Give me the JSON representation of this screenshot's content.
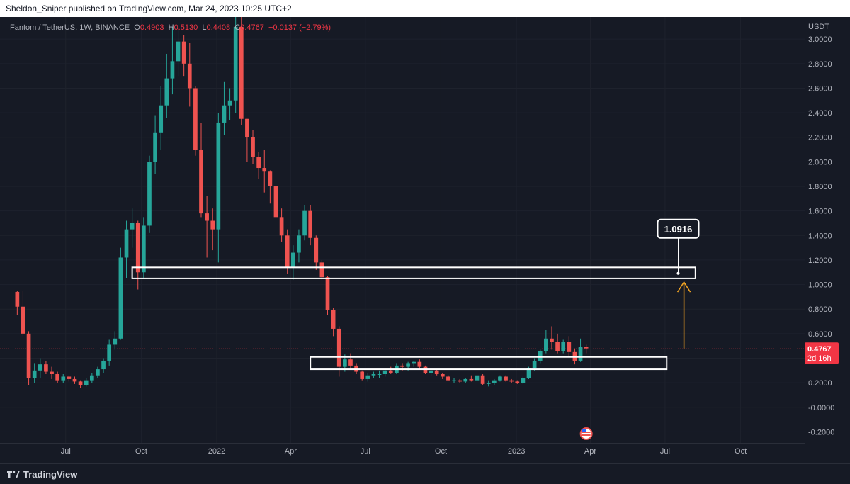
{
  "header": {
    "published_text": "Sheldon_Sniper published on TradingView.com, Mar 24, 2023 10:25 UTC+2"
  },
  "footer": {
    "brand": "TradingView",
    "logo_icon": "tradingview-logo-icon"
  },
  "colors": {
    "background": "#161a25",
    "grid": "#1e222d",
    "up": "#26a69a",
    "down": "#ef5350",
    "text": "#b2b5be",
    "zone_border": "#ffffff",
    "arrow": "#f5a623",
    "last_price_bg": "#f23645"
  },
  "legend": {
    "symbol": "Fantom / TetherUS, 1W, BINANCE",
    "o_label": "O",
    "o_value": "0.4903",
    "h_label": "H",
    "h_value": "0.5130",
    "l_label": "L",
    "l_value": "0.4408",
    "c_label": "C",
    "c_value": "0.4767",
    "change": "−0.0137 (−2.79%)"
  },
  "chart_data": {
    "type": "candlestick",
    "symbol": "Fantom / TetherUS",
    "interval": "1W",
    "exchange": "BINANCE",
    "currency_label": "USDT",
    "y_range": [
      -0.29,
      3.18
    ],
    "y_ticks": [
      "3.0000",
      "2.8000",
      "2.6000",
      "2.4000",
      "2.2000",
      "2.0000",
      "1.8000",
      "1.6000",
      "1.4000",
      "1.2000",
      "1.0000",
      "0.8000",
      "0.6000",
      "0.4000",
      "0.2000",
      "-0.0000",
      "-0.2000"
    ],
    "y_tick_values": [
      3.0,
      2.8,
      2.6,
      2.4,
      2.2,
      2.0,
      1.8,
      1.6,
      1.4,
      1.2,
      1.0,
      0.8,
      0.6,
      0.4,
      0.2,
      0.0,
      -0.2
    ],
    "x_range": [
      "2021-04-12",
      "2023-12-18"
    ],
    "x_ticks": [
      {
        "label": "Jul",
        "date": "2021-07-01"
      },
      {
        "label": "Oct",
        "date": "2021-10-01"
      },
      {
        "label": "2022",
        "date": "2022-01-01"
      },
      {
        "label": "Apr",
        "date": "2022-04-01"
      },
      {
        "label": "Jul",
        "date": "2022-07-01"
      },
      {
        "label": "Oct",
        "date": "2022-10-01"
      },
      {
        "label": "2023",
        "date": "2023-01-01"
      },
      {
        "label": "Apr",
        "date": "2023-04-01"
      },
      {
        "label": "Jul",
        "date": "2023-07-01"
      },
      {
        "label": "Oct",
        "date": "2023-10-01"
      }
    ],
    "first_candle_date": "2021-05-03",
    "candles": [
      [
        0.94,
        0.95,
        0.75,
        0.82
      ],
      [
        0.82,
        0.95,
        0.58,
        0.6
      ],
      [
        0.6,
        0.62,
        0.18,
        0.24
      ],
      [
        0.24,
        0.36,
        0.2,
        0.3
      ],
      [
        0.3,
        0.4,
        0.24,
        0.35
      ],
      [
        0.35,
        0.38,
        0.27,
        0.29
      ],
      [
        0.29,
        0.33,
        0.23,
        0.27
      ],
      [
        0.27,
        0.29,
        0.2,
        0.22
      ],
      [
        0.22,
        0.27,
        0.2,
        0.25
      ],
      [
        0.25,
        0.26,
        0.21,
        0.23
      ],
      [
        0.23,
        0.25,
        0.19,
        0.21
      ],
      [
        0.21,
        0.22,
        0.16,
        0.18
      ],
      [
        0.18,
        0.24,
        0.17,
        0.22
      ],
      [
        0.22,
        0.28,
        0.2,
        0.26
      ],
      [
        0.26,
        0.33,
        0.24,
        0.31
      ],
      [
        0.31,
        0.4,
        0.28,
        0.38
      ],
      [
        0.38,
        0.55,
        0.34,
        0.51
      ],
      [
        0.51,
        0.62,
        0.47,
        0.56
      ],
      [
        0.56,
        1.3,
        0.55,
        1.22
      ],
      [
        1.22,
        1.52,
        1.05,
        1.45
      ],
      [
        1.45,
        1.62,
        1.3,
        1.5
      ],
      [
        1.5,
        1.52,
        0.96,
        1.1
      ],
      [
        1.1,
        1.55,
        1.05,
        1.48
      ],
      [
        1.48,
        2.05,
        1.42,
        2.0
      ],
      [
        2.0,
        2.38,
        1.9,
        2.24
      ],
      [
        2.24,
        2.62,
        2.1,
        2.46
      ],
      [
        2.46,
        2.88,
        2.36,
        2.68
      ],
      [
        2.68,
        3.1,
        2.55,
        2.82
      ],
      [
        2.82,
        3.1,
        2.7,
        2.98
      ],
      [
        2.98,
        3.03,
        2.7,
        2.8
      ],
      [
        2.8,
        2.97,
        2.45,
        2.6
      ],
      [
        2.6,
        2.62,
        2.05,
        2.1
      ],
      [
        2.1,
        2.32,
        1.55,
        1.58
      ],
      [
        1.58,
        1.72,
        1.22,
        1.52
      ],
      [
        1.52,
        1.62,
        1.28,
        1.45
      ],
      [
        1.45,
        2.4,
        1.18,
        2.32
      ],
      [
        2.32,
        2.65,
        2.22,
        2.46
      ],
      [
        2.46,
        2.6,
        2.34,
        2.5
      ],
      [
        2.5,
        3.18,
        2.4,
        3.1
      ],
      [
        3.1,
        3.18,
        2.3,
        2.35
      ],
      [
        2.35,
        2.35,
        2.0,
        2.2
      ],
      [
        2.2,
        2.26,
        1.98,
        2.04
      ],
      [
        2.04,
        2.08,
        1.86,
        1.95
      ],
      [
        1.95,
        2.1,
        1.75,
        1.92
      ],
      [
        1.92,
        1.93,
        1.66,
        1.8
      ],
      [
        1.8,
        1.85,
        1.48,
        1.55
      ],
      [
        1.55,
        1.62,
        1.35,
        1.4
      ],
      [
        1.4,
        1.45,
        1.09,
        1.14
      ],
      [
        1.14,
        1.32,
        1.04,
        1.26
      ],
      [
        1.26,
        1.45,
        1.18,
        1.4
      ],
      [
        1.4,
        1.65,
        1.36,
        1.6
      ],
      [
        1.6,
        1.65,
        1.32,
        1.38
      ],
      [
        1.38,
        1.4,
        1.12,
        1.18
      ],
      [
        1.18,
        1.2,
        1.04,
        1.06
      ],
      [
        1.06,
        1.07,
        0.75,
        0.79
      ],
      [
        0.79,
        0.81,
        0.58,
        0.64
      ],
      [
        0.64,
        0.66,
        0.25,
        0.33
      ],
      [
        0.33,
        0.43,
        0.29,
        0.39
      ],
      [
        0.39,
        0.44,
        0.32,
        0.34
      ],
      [
        0.34,
        0.36,
        0.27,
        0.29
      ],
      [
        0.29,
        0.3,
        0.22,
        0.23
      ],
      [
        0.23,
        0.28,
        0.21,
        0.26
      ],
      [
        0.26,
        0.29,
        0.24,
        0.27
      ],
      [
        0.27,
        0.3,
        0.24,
        0.27
      ],
      [
        0.27,
        0.32,
        0.25,
        0.3
      ],
      [
        0.3,
        0.33,
        0.27,
        0.28
      ],
      [
        0.28,
        0.36,
        0.27,
        0.34
      ],
      [
        0.34,
        0.36,
        0.3,
        0.33
      ],
      [
        0.33,
        0.37,
        0.3,
        0.36
      ],
      [
        0.36,
        0.38,
        0.33,
        0.37
      ],
      [
        0.37,
        0.39,
        0.31,
        0.33
      ],
      [
        0.33,
        0.34,
        0.27,
        0.28
      ],
      [
        0.28,
        0.31,
        0.26,
        0.3
      ],
      [
        0.3,
        0.31,
        0.26,
        0.27
      ],
      [
        0.27,
        0.28,
        0.23,
        0.25
      ],
      [
        0.25,
        0.26,
        0.22,
        0.22
      ],
      [
        0.22,
        0.24,
        0.2,
        0.22
      ],
      [
        0.22,
        0.23,
        0.2,
        0.21
      ],
      [
        0.21,
        0.24,
        0.2,
        0.23
      ],
      [
        0.23,
        0.26,
        0.21,
        0.22
      ],
      [
        0.22,
        0.29,
        0.2,
        0.26
      ],
      [
        0.26,
        0.27,
        0.18,
        0.19
      ],
      [
        0.19,
        0.22,
        0.17,
        0.2
      ],
      [
        0.2,
        0.23,
        0.18,
        0.22
      ],
      [
        0.22,
        0.26,
        0.21,
        0.25
      ],
      [
        0.25,
        0.26,
        0.21,
        0.22
      ],
      [
        0.22,
        0.23,
        0.2,
        0.21
      ],
      [
        0.21,
        0.22,
        0.19,
        0.2
      ],
      [
        0.2,
        0.25,
        0.19,
        0.24
      ],
      [
        0.24,
        0.33,
        0.23,
        0.32
      ],
      [
        0.32,
        0.4,
        0.3,
        0.38
      ],
      [
        0.38,
        0.47,
        0.36,
        0.46
      ],
      [
        0.46,
        0.63,
        0.44,
        0.56
      ],
      [
        0.56,
        0.66,
        0.47,
        0.53
      ],
      [
        0.53,
        0.6,
        0.44,
        0.46
      ],
      [
        0.46,
        0.55,
        0.44,
        0.53
      ],
      [
        0.53,
        0.58,
        0.41,
        0.45
      ],
      [
        0.45,
        0.48,
        0.35,
        0.38
      ],
      [
        0.38,
        0.56,
        0.37,
        0.49
      ],
      [
        0.49,
        0.51,
        0.44,
        0.48
      ]
    ],
    "last_price": "0.4767",
    "countdown": "2d 16h",
    "annotations": {
      "resistance_zone": {
        "start": "2021-09-20",
        "end": "2023-08-07",
        "low": 1.05,
        "high": 1.14
      },
      "support_zone": {
        "start": "2022-04-25",
        "end": "2023-07-03",
        "low": 0.31,
        "high": 0.41
      },
      "callout_label": "1.0916",
      "callout_value": 1.0916,
      "callout_date": "2023-07-17",
      "arrow": {
        "date": "2023-07-24",
        "from": 0.48,
        "to": 1.02
      },
      "event_icon": "us-flag-icon",
      "event_date": "2023-03-27"
    }
  }
}
